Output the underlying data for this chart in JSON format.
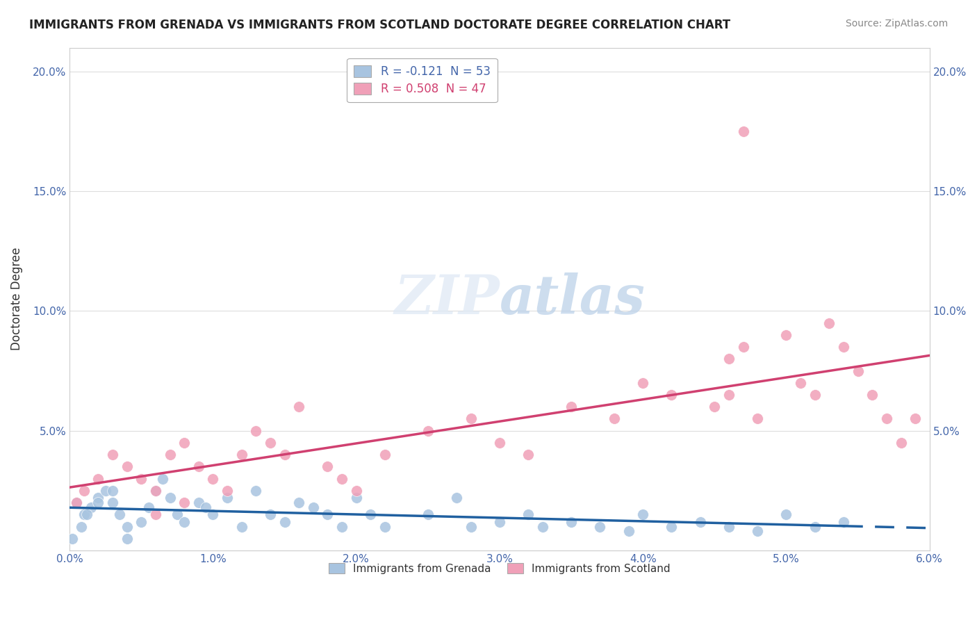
{
  "title": "IMMIGRANTS FROM GRENADA VS IMMIGRANTS FROM SCOTLAND DOCTORATE DEGREE CORRELATION CHART",
  "source": "Source: ZipAtlas.com",
  "ylabel": "Doctorate Degree",
  "legend_entries": [
    {
      "label": "R = -0.121  N = 53",
      "color": "#a8c4e0"
    },
    {
      "label": "R = 0.508  N = 47",
      "color": "#f0a0b8"
    }
  ],
  "series_grenada": {
    "color": "#a8c4e0",
    "line_color": "#2060a0",
    "x": [
      0.0005,
      0.001,
      0.0015,
      0.002,
      0.0025,
      0.003,
      0.0035,
      0.004,
      0.005,
      0.0055,
      0.006,
      0.0065,
      0.007,
      0.0075,
      0.008,
      0.009,
      0.0095,
      0.01,
      0.011,
      0.012,
      0.013,
      0.014,
      0.015,
      0.016,
      0.017,
      0.018,
      0.019,
      0.02,
      0.021,
      0.022,
      0.025,
      0.027,
      0.028,
      0.03,
      0.032,
      0.033,
      0.035,
      0.037,
      0.039,
      0.04,
      0.042,
      0.044,
      0.046,
      0.048,
      0.05,
      0.052,
      0.054,
      0.0002,
      0.0008,
      0.0012,
      0.002,
      0.003,
      0.004
    ],
    "y": [
      0.02,
      0.015,
      0.018,
      0.022,
      0.025,
      0.02,
      0.015,
      0.01,
      0.012,
      0.018,
      0.025,
      0.03,
      0.022,
      0.015,
      0.012,
      0.02,
      0.018,
      0.015,
      0.022,
      0.01,
      0.025,
      0.015,
      0.012,
      0.02,
      0.018,
      0.015,
      0.01,
      0.022,
      0.015,
      0.01,
      0.015,
      0.022,
      0.01,
      0.012,
      0.015,
      0.01,
      0.012,
      0.01,
      0.008,
      0.015,
      0.01,
      0.012,
      0.01,
      0.008,
      0.015,
      0.01,
      0.012,
      0.005,
      0.01,
      0.015,
      0.02,
      0.025,
      0.005
    ]
  },
  "series_scotland": {
    "color": "#f0a0b8",
    "line_color": "#d04070",
    "x": [
      0.0005,
      0.001,
      0.002,
      0.003,
      0.004,
      0.005,
      0.006,
      0.007,
      0.008,
      0.009,
      0.01,
      0.011,
      0.012,
      0.013,
      0.014,
      0.015,
      0.016,
      0.018,
      0.019,
      0.02,
      0.022,
      0.025,
      0.028,
      0.03,
      0.032,
      0.035,
      0.038,
      0.04,
      0.042,
      0.045,
      0.046,
      0.047,
      0.048,
      0.05,
      0.051,
      0.052,
      0.053,
      0.054,
      0.055,
      0.056,
      0.057,
      0.058,
      0.059,
      0.046,
      0.047,
      0.006,
      0.008
    ],
    "y": [
      0.02,
      0.025,
      0.03,
      0.04,
      0.035,
      0.03,
      0.025,
      0.04,
      0.045,
      0.035,
      0.03,
      0.025,
      0.04,
      0.05,
      0.045,
      0.04,
      0.06,
      0.035,
      0.03,
      0.025,
      0.04,
      0.05,
      0.055,
      0.045,
      0.04,
      0.06,
      0.055,
      0.07,
      0.065,
      0.06,
      0.08,
      0.085,
      0.055,
      0.09,
      0.07,
      0.065,
      0.095,
      0.085,
      0.075,
      0.065,
      0.055,
      0.045,
      0.055,
      0.065,
      0.175,
      0.015,
      0.02
    ]
  },
  "background_color": "#ffffff",
  "grid_color": "#dddddd",
  "xlim": [
    0.0,
    0.06
  ],
  "ylim": [
    0.0,
    0.21
  ],
  "xtick_positions": [
    0.0,
    0.01,
    0.02,
    0.03,
    0.04,
    0.05,
    0.06
  ],
  "xtick_labels": [
    "0.0%",
    "1.0%",
    "2.0%",
    "3.0%",
    "4.0%",
    "5.0%",
    "6.0%"
  ],
  "ytick_positions": [
    0.0,
    0.05,
    0.1,
    0.15,
    0.2
  ],
  "ytick_labels": [
    "",
    "5.0%",
    "10.0%",
    "15.0%",
    "20.0%"
  ]
}
